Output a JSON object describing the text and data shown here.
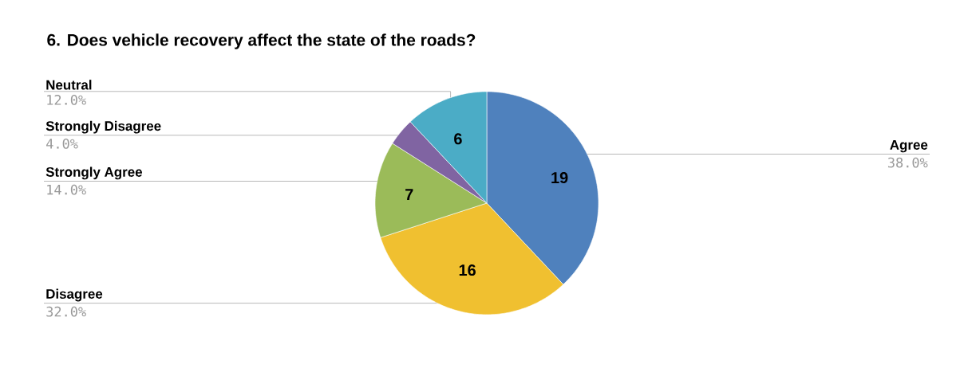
{
  "chart_data": {
    "type": "pie",
    "title": "6. Does vehicle recovery affect the state of the roads?",
    "categories": [
      "Agree",
      "Disagree",
      "Strongly Agree",
      "Strongly Disagree",
      "Neutral"
    ],
    "values": [
      38,
      32,
      14,
      4,
      12
    ],
    "colors": [
      "#4f81bd",
      "#f0c030",
      "#9bbb59",
      "#8064a2",
      "#4bacc6"
    ],
    "value_labels": [
      "38.0%",
      "32.0%",
      "14.0%",
      "4.0%",
      "12.0%"
    ],
    "annotations": [
      {
        "text": "19",
        "x": "Agree"
      },
      {
        "text": "16",
        "x": "Disagree"
      },
      {
        "text": "7",
        "x": "Strongly Agree"
      },
      {
        "text": "6",
        "x": "Neutral"
      }
    ]
  }
}
